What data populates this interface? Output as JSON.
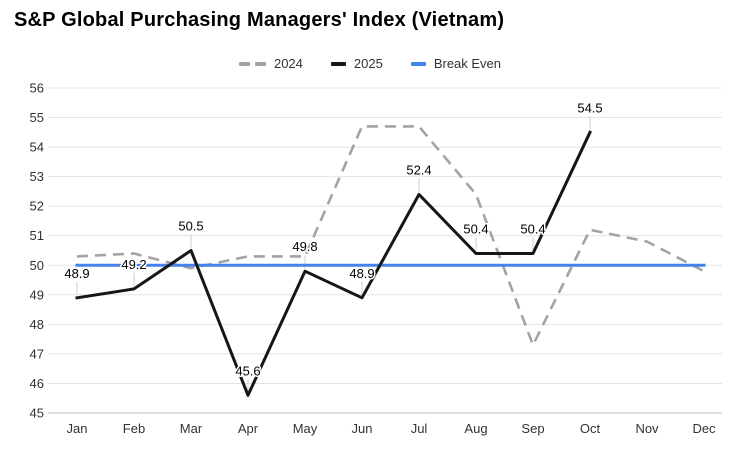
{
  "chart_data": {
    "type": "line",
    "title": "S&P Global Purchasing Managers' Index (Vietnam)",
    "categories": [
      "Jan",
      "Feb",
      "Mar",
      "Apr",
      "May",
      "Jun",
      "Jul",
      "Aug",
      "Sep",
      "Oct",
      "Nov",
      "Dec"
    ],
    "series": [
      {
        "name": "2024",
        "style": "dashed",
        "color": "#a3a3a3",
        "values": [
          50.3,
          50.4,
          49.9,
          50.3,
          50.3,
          54.7,
          54.7,
          52.4,
          47.3,
          51.2,
          50.8,
          49.8
        ],
        "show_labels": false
      },
      {
        "name": "2025",
        "style": "solid",
        "color": "#161616",
        "values": [
          48.9,
          49.2,
          50.5,
          45.6,
          49.8,
          48.9,
          52.4,
          50.4,
          50.4,
          54.5
        ],
        "data_labels": [
          "48.9",
          "49.2",
          "50.5",
          "45.6",
          "49.8",
          "48.9",
          "52.4",
          "50.4",
          "50.4",
          "54.5"
        ],
        "show_labels": true
      },
      {
        "name": "Break Even",
        "style": "solid",
        "color": "#4583ec",
        "values": [
          50,
          50,
          50,
          50,
          50,
          50,
          50,
          50,
          50,
          50,
          50,
          50
        ],
        "show_labels": false
      }
    ],
    "ylim": [
      45,
      56
    ],
    "y_ticks": [
      45,
      46,
      47,
      48,
      49,
      50,
      51,
      52,
      53,
      54,
      55,
      56
    ],
    "xlabel": "",
    "ylabel": "",
    "grid": true,
    "legend_position": "top",
    "colors": {
      "grid_line": "#e4e4e4",
      "baseline": "#bcbcbc",
      "axis_text": "#333333",
      "label_stem": "#cccccc"
    }
  }
}
